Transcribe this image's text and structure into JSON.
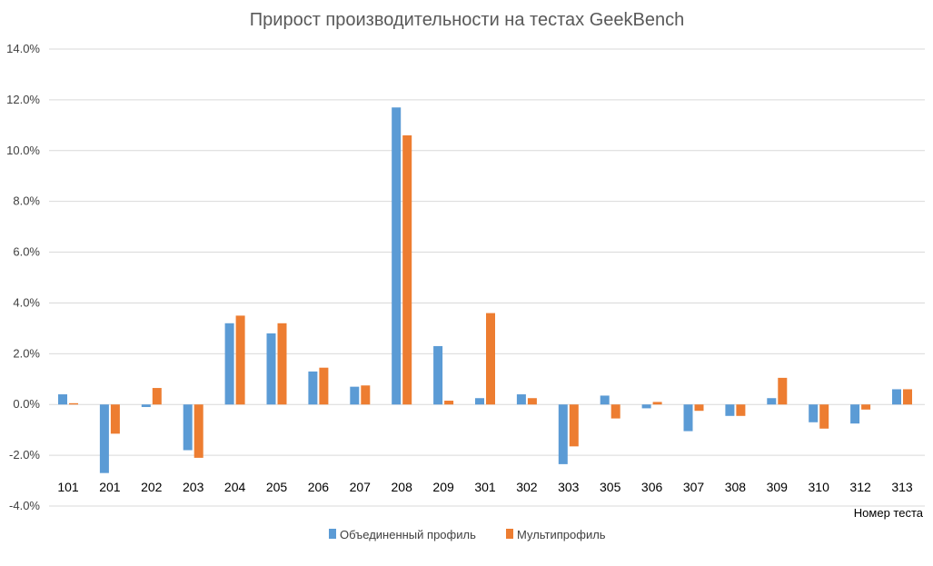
{
  "chart_data": {
    "type": "bar",
    "title": "Прирост производительности на тестах GeekBench",
    "xlabel": "Номер теста",
    "ylabel": "",
    "categories": [
      "101",
      "201",
      "202",
      "203",
      "204",
      "205",
      "206",
      "207",
      "208",
      "209",
      "301",
      "302",
      "303",
      "305",
      "306",
      "307",
      "308",
      "309",
      "310",
      "312",
      "313"
    ],
    "ylim": [
      -0.04,
      0.14
    ],
    "yticks": [
      -0.04,
      -0.02,
      0.0,
      0.02,
      0.04,
      0.06,
      0.08,
      0.1,
      0.12,
      0.14
    ],
    "ytick_labels": [
      "-4.0%",
      "-2.0%",
      "0.0%",
      "2.0%",
      "4.0%",
      "6.0%",
      "8.0%",
      "10.0%",
      "12.0%",
      "14.0%"
    ],
    "grid": true,
    "legend_position": "bottom",
    "series": [
      {
        "name": "Объединенный профиль",
        "color": "#5b9bd5",
        "values": [
          0.004,
          -0.027,
          -0.001,
          -0.018,
          0.032,
          0.028,
          0.013,
          0.007,
          0.117,
          0.023,
          0.0025,
          0.004,
          -0.0235,
          0.0035,
          -0.0015,
          -0.0105,
          -0.0045,
          0.0025,
          -0.007,
          -0.0075,
          0.006
        ]
      },
      {
        "name": "Мультипрофиль",
        "color": "#ed7d31",
        "values": [
          0.0005,
          -0.0115,
          0.0065,
          -0.021,
          0.035,
          0.032,
          0.0145,
          0.0075,
          0.106,
          0.0015,
          0.036,
          0.0025,
          -0.0165,
          -0.0055,
          0.001,
          -0.0025,
          -0.0045,
          0.0105,
          -0.0095,
          -0.002,
          0.006
        ]
      }
    ]
  }
}
